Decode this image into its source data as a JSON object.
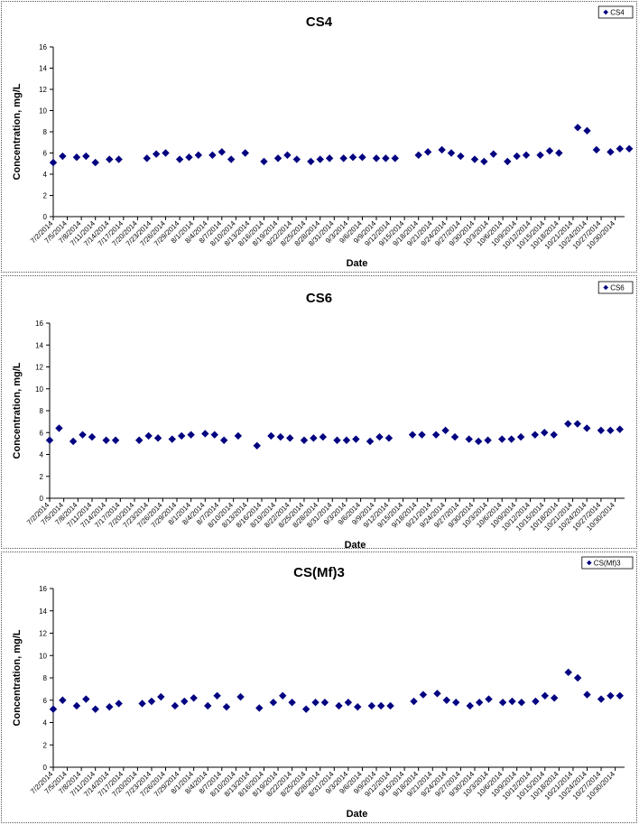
{
  "chart_data": [
    {
      "type": "scatter",
      "title": "CS4",
      "xlabel": "Date",
      "ylabel": "Concentration, mg/L",
      "ylim": [
        0,
        16
      ],
      "yticks": [
        "0",
        "2",
        "4",
        "6",
        "8",
        "10",
        "12",
        "14",
        "16"
      ],
      "xlim": [
        "7/2/2014",
        "11/1/2014"
      ],
      "xticks": [
        "7/2/2014",
        "7/5/2014",
        "7/8/2014",
        "7/11/2014",
        "7/14/2014",
        "7/17/2014",
        "7/20/2014",
        "7/23/2014",
        "7/26/2014",
        "7/29/2014",
        "8/1/2014",
        "8/4/2014",
        "8/7/2014",
        "8/10/2014",
        "8/13/2014",
        "8/16/2014",
        "8/19/2014",
        "8/22/2014",
        "8/25/2014",
        "8/28/2014",
        "8/31/2014",
        "9/3/2014",
        "9/6/2014",
        "9/9/2014",
        "9/12/2014",
        "9/15/2014",
        "9/18/2014",
        "9/21/2014",
        "9/24/2014",
        "9/27/2014",
        "9/30/2014",
        "10/3/2014",
        "10/6/2014",
        "10/9/2014",
        "10/12/2014",
        "10/15/2014",
        "10/18/2014",
        "10/21/2014",
        "10/24/2014",
        "10/27/2014",
        "10/30/2014"
      ],
      "grid": false,
      "legend": "top-right",
      "marker_color": "#000080",
      "series": [
        {
          "name": "CS4",
          "x": [
            "7/2/2014",
            "7/4/2014",
            "7/7/2014",
            "7/9/2014",
            "7/11/2014",
            "7/14/2014",
            "7/16/2014",
            "7/22/2014",
            "7/24/2014",
            "7/26/2014",
            "7/29/2014",
            "7/31/2014",
            "8/2/2014",
            "8/5/2014",
            "8/7/2014",
            "8/9/2014",
            "8/12/2014",
            "8/16/2014",
            "8/19/2014",
            "8/21/2014",
            "8/23/2014",
            "8/26/2014",
            "8/28/2014",
            "8/30/2014",
            "9/2/2014",
            "9/4/2014",
            "9/6/2014",
            "9/9/2014",
            "9/11/2014",
            "9/13/2014",
            "9/18/2014",
            "9/20/2014",
            "9/23/2014",
            "9/25/2014",
            "9/27/2014",
            "9/30/2014",
            "10/2/2014",
            "10/4/2014",
            "10/7/2014",
            "10/9/2014",
            "10/11/2014",
            "10/14/2014",
            "10/16/2014",
            "10/18/2014",
            "10/22/2014",
            "10/24/2014",
            "10/26/2014",
            "10/29/2014",
            "10/31/2014",
            "11/2/2014"
          ],
          "y": [
            5.1,
            5.7,
            5.6,
            5.7,
            5.1,
            5.4,
            5.4,
            5.5,
            5.9,
            6.0,
            5.4,
            5.6,
            5.8,
            5.8,
            6.1,
            5.4,
            6.0,
            5.2,
            5.5,
            5.8,
            5.4,
            5.2,
            5.4,
            5.5,
            5.5,
            5.6,
            5.6,
            5.5,
            5.5,
            5.5,
            5.8,
            6.1,
            6.3,
            6.0,
            5.7,
            5.4,
            5.2,
            5.9,
            5.2,
            5.7,
            5.8,
            5.8,
            6.2,
            6.0,
            8.4,
            8.1,
            6.3,
            6.1,
            6.4,
            6.4
          ]
        }
      ]
    },
    {
      "type": "scatter",
      "title": "CS6",
      "xlabel": "Date",
      "ylabel": "Concentration, mg/L",
      "ylim": [
        0,
        16
      ],
      "yticks": [
        "0",
        "2",
        "4",
        "6",
        "8",
        "10",
        "12",
        "14",
        "16"
      ],
      "xlim": [
        "7/2/2014",
        "11/1/2014"
      ],
      "xticks": [
        "7/2/2014",
        "7/5/2014",
        "7/8/2014",
        "7/11/2014",
        "7/14/2014",
        "7/17/2014",
        "7/20/2014",
        "7/23/2014",
        "7/26/2014",
        "7/29/2014",
        "8/1/2014",
        "8/4/2014",
        "8/7/2014",
        "8/10/2014",
        "8/13/2014",
        "8/16/2014",
        "8/19/2014",
        "8/22/2014",
        "8/25/2014",
        "8/28/2014",
        "8/31/2014",
        "9/3/2014",
        "9/6/2014",
        "9/9/2014",
        "9/12/2014",
        "9/15/2014",
        "9/18/2014",
        "9/21/2014",
        "9/24/2014",
        "9/27/2014",
        "9/30/2014",
        "10/3/2014",
        "10/6/2014",
        "10/9/2014",
        "10/12/2014",
        "10/15/2014",
        "10/18/2014",
        "10/21/2014",
        "10/24/2014",
        "10/27/2014",
        "10/30/2014"
      ],
      "grid": false,
      "legend": "top-right",
      "marker_color": "#000080",
      "series": [
        {
          "name": "CS6",
          "x": [
            "7/2/2014",
            "7/4/2014",
            "7/7/2014",
            "7/9/2014",
            "7/11/2014",
            "7/14/2014",
            "7/16/2014",
            "7/21/2014",
            "7/23/2014",
            "7/25/2014",
            "7/28/2014",
            "7/30/2014",
            "8/1/2014",
            "8/4/2014",
            "8/6/2014",
            "8/8/2014",
            "8/11/2014",
            "8/15/2014",
            "8/18/2014",
            "8/20/2014",
            "8/22/2014",
            "8/25/2014",
            "8/27/2014",
            "8/29/2014",
            "9/1/2014",
            "9/3/2014",
            "9/5/2014",
            "9/8/2014",
            "9/10/2014",
            "9/12/2014",
            "9/17/2014",
            "9/19/2014",
            "9/22/2014",
            "9/24/2014",
            "9/26/2014",
            "9/29/2014",
            "10/1/2014",
            "10/3/2014",
            "10/6/2014",
            "10/8/2014",
            "10/10/2014",
            "10/13/2014",
            "10/15/2014",
            "10/17/2014",
            "10/20/2014",
            "10/22/2014",
            "10/24/2014",
            "10/27/2014",
            "10/29/2014",
            "10/31/2014"
          ],
          "y": [
            5.3,
            6.4,
            5.2,
            5.8,
            5.6,
            5.3,
            5.3,
            5.3,
            5.7,
            5.5,
            5.4,
            5.7,
            5.8,
            5.9,
            5.8,
            5.3,
            5.7,
            4.8,
            5.7,
            5.6,
            5.5,
            5.3,
            5.5,
            5.6,
            5.3,
            5.3,
            5.4,
            5.2,
            5.6,
            5.5,
            5.8,
            5.8,
            5.8,
            6.2,
            5.6,
            5.4,
            5.2,
            5.3,
            5.4,
            5.4,
            5.6,
            5.8,
            6.0,
            5.8,
            6.8,
            6.8,
            6.4,
            6.2,
            6.2,
            6.3
          ]
        }
      ]
    },
    {
      "type": "scatter",
      "title": "CS(Mf)3",
      "xlabel": "Date",
      "ylabel": "Concentration, mg/L",
      "ylim": [
        0,
        16
      ],
      "yticks": [
        "0",
        "2",
        "4",
        "6",
        "8",
        "10",
        "12",
        "14",
        "16"
      ],
      "xlim": [
        "7/2/2014",
        "11/1/2014"
      ],
      "xticks": [
        "7/2/2014",
        "7/5/2014",
        "7/8/2014",
        "7/11/2014",
        "7/14/2014",
        "7/17/2014",
        "7/20/2014",
        "7/23/2014",
        "7/26/2014",
        "7/29/2014",
        "8/1/2014",
        "8/4/2014",
        "8/7/2014",
        "8/10/2014",
        "8/13/2014",
        "8/16/2014",
        "8/19/2014",
        "8/22/2014",
        "8/25/2014",
        "8/28/2014",
        "8/31/2014",
        "9/3/2014",
        "9/6/2014",
        "9/9/2014",
        "9/12/2014",
        "9/15/2014",
        "9/18/2014",
        "9/21/2014",
        "9/24/2014",
        "9/27/2014",
        "9/30/2014",
        "10/3/2014",
        "10/6/2014",
        "10/9/2014",
        "10/12/2014",
        "10/15/2014",
        "10/18/2014",
        "10/21/2014",
        "10/24/2014",
        "10/27/2014",
        "10/30/2014"
      ],
      "grid": false,
      "legend": "top-right",
      "marker_color": "#000080",
      "series": [
        {
          "name": "CS(Mf)3",
          "x": [
            "7/2/2014",
            "7/4/2014",
            "7/7/2014",
            "7/9/2014",
            "7/11/2014",
            "7/14/2014",
            "7/16/2014",
            "7/21/2014",
            "7/23/2014",
            "7/25/2014",
            "7/28/2014",
            "7/30/2014",
            "8/1/2014",
            "8/4/2014",
            "8/6/2014",
            "8/8/2014",
            "8/11/2014",
            "8/15/2014",
            "8/18/2014",
            "8/20/2014",
            "8/22/2014",
            "8/25/2014",
            "8/27/2014",
            "8/29/2014",
            "9/1/2014",
            "9/3/2014",
            "9/5/2014",
            "9/8/2014",
            "9/10/2014",
            "9/12/2014",
            "9/17/2014",
            "9/19/2014",
            "9/22/2014",
            "9/24/2014",
            "9/26/2014",
            "9/29/2014",
            "10/1/2014",
            "10/3/2014",
            "10/6/2014",
            "10/8/2014",
            "10/10/2014",
            "10/13/2014",
            "10/15/2014",
            "10/17/2014",
            "10/20/2014",
            "10/22/2014",
            "10/24/2014",
            "10/27/2014",
            "10/29/2014",
            "10/31/2014"
          ],
          "y": [
            5.2,
            6.0,
            5.5,
            6.1,
            5.2,
            5.4,
            5.7,
            5.7,
            5.9,
            6.3,
            5.5,
            5.9,
            6.2,
            5.5,
            6.4,
            5.4,
            6.3,
            5.3,
            5.8,
            6.4,
            5.8,
            5.2,
            5.8,
            5.8,
            5.5,
            5.8,
            5.4,
            5.5,
            5.5,
            5.5,
            5.9,
            6.5,
            6.6,
            6.0,
            5.8,
            5.5,
            5.8,
            6.1,
            5.8,
            5.9,
            5.8,
            5.9,
            6.4,
            6.2,
            8.5,
            8.0,
            6.5,
            6.1,
            6.4,
            6.4
          ]
        }
      ]
    }
  ]
}
